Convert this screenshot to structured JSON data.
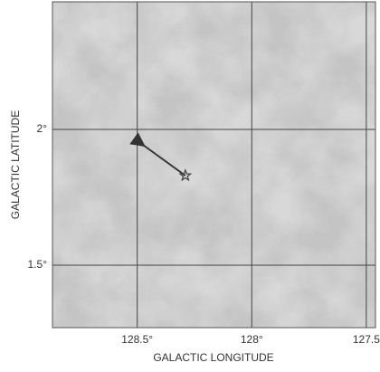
{
  "chart_data": {
    "type": "map",
    "x_label": "GALACTIC LONGITUDE",
    "y_label": "GALACTIC LATITUDE",
    "xlim": [
      128.87,
      127.46
    ],
    "ylim": [
      1.27,
      2.47
    ],
    "xticks": [
      {
        "value": 128.5,
        "label": "128.5°"
      },
      {
        "value": 128,
        "label": "128°"
      },
      {
        "value": 127.5,
        "label": "127.5"
      }
    ],
    "yticks": [
      {
        "value": 1.5,
        "label": "1.5°"
      },
      {
        "value": 2,
        "label": "2°"
      }
    ],
    "grid": true,
    "star": {
      "x": 128.29,
      "y": 1.83,
      "color": "#444"
    },
    "arrow": {
      "x": [
        128.29,
        128.47
      ],
      "y": [
        1.83,
        1.94
      ],
      "color": "#333"
    }
  }
}
